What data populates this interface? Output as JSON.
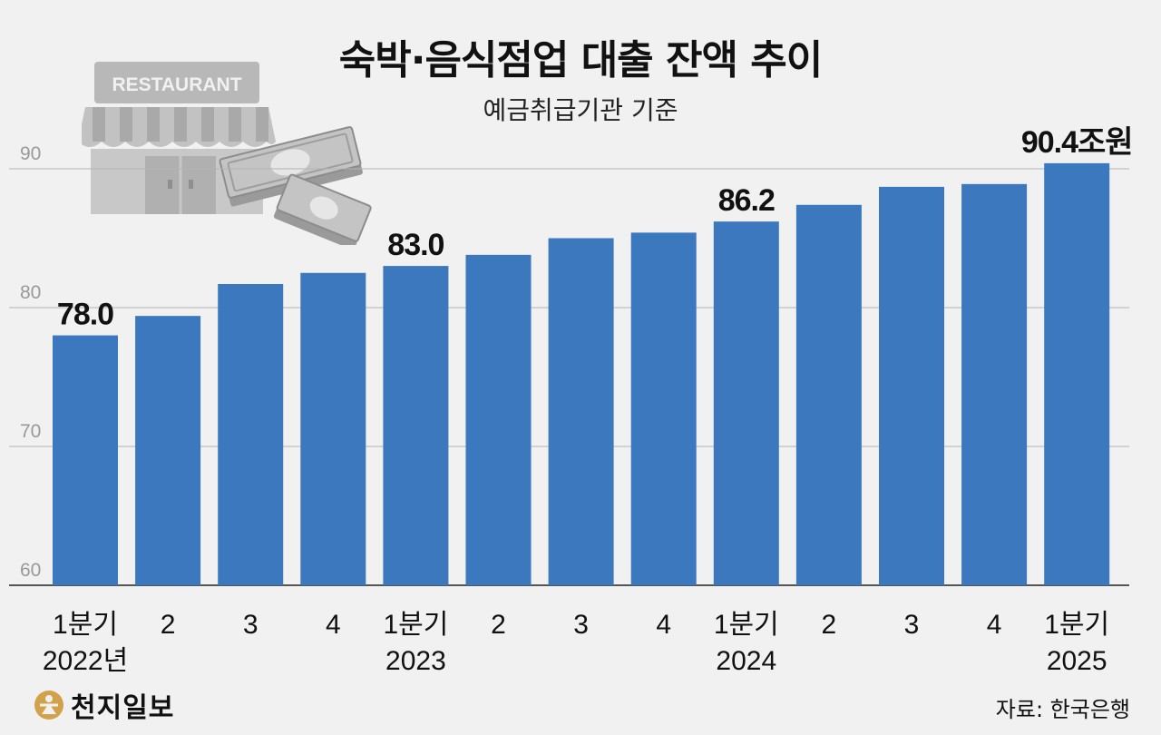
{
  "title": "숙박·음식점업 대출 잔액 추이",
  "subtitle": "예금취급기관 기준",
  "brand": "천지일보",
  "source": "자료: 한국은행",
  "illustration": {
    "icon": "restaurant-with-money-icon",
    "sign_text": "RESTAURANT"
  },
  "colors": {
    "bar": "#3b78bd",
    "grid": "#b3b3b3",
    "background": "#f1f1f1",
    "illustration": "#b8b8b8"
  },
  "chart_data": {
    "type": "bar",
    "title": "숙박·음식점업 대출 잔액 추이",
    "subtitle": "예금취급기관 기준",
    "categories": [
      [
        "1분기",
        "2022년"
      ],
      [
        "2"
      ],
      [
        "3"
      ],
      [
        "4"
      ],
      [
        "1분기",
        "2023"
      ],
      [
        "2"
      ],
      [
        "3"
      ],
      [
        "4"
      ],
      [
        "1분기",
        "2024"
      ],
      [
        "2"
      ],
      [
        "3"
      ],
      [
        "4"
      ],
      [
        "1분기",
        "2025"
      ]
    ],
    "values": [
      78.0,
      79.4,
      81.7,
      82.5,
      83.0,
      83.8,
      85.0,
      85.4,
      86.2,
      87.4,
      88.7,
      88.9,
      90.4
    ],
    "data_labels": [
      {
        "index": 0,
        "text": "78.0"
      },
      {
        "index": 4,
        "text": "83.0"
      },
      {
        "index": 8,
        "text": "86.2"
      },
      {
        "index": 12,
        "text": "90.4조원"
      }
    ],
    "yticks": [
      60,
      70,
      80,
      90
    ],
    "ylim": [
      60,
      92
    ],
    "grid": true,
    "xlabel": "",
    "ylabel": ""
  }
}
